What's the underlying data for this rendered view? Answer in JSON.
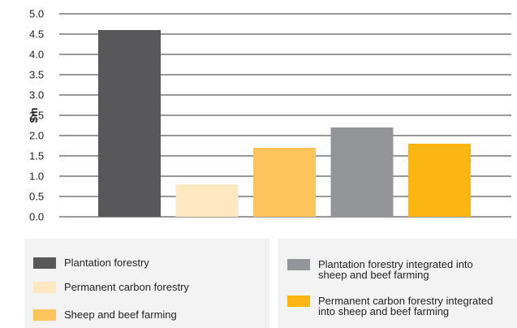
{
  "chart_data": {
    "type": "bar",
    "categories": [
      "Plantation forestry",
      "Permanent carbon forestry",
      "Sheep and beef farming",
      "Plantation forestry integrated into sheep and beef farming",
      "Permanent carbon forestry integrated into sheep and beef farming"
    ],
    "values": [
      4.6,
      0.8,
      1.7,
      2.2,
      1.8
    ],
    "colors": [
      "#58585a",
      "#fde8c2",
      "#fdc35c",
      "#939598",
      "#fbb614"
    ],
    "ylabel": "$m",
    "ylim": [
      0,
      5.0
    ],
    "yticks": [
      "0.0",
      "0.5",
      "1.0",
      "1.5",
      "2.0",
      "2.5",
      "3.0",
      "3.5",
      "4.0",
      "4.5",
      "5.0"
    ],
    "grid": true,
    "legend_placement": "bottom",
    "legend": {
      "left": [
        {
          "label": "Plantation forestry",
          "color": "#58585a"
        },
        {
          "label": "Permanent carbon forestry",
          "color": "#fde8c2"
        },
        {
          "label": "Sheep and beef farming",
          "color": "#fdc35c"
        }
      ],
      "right": [
        {
          "label": [
            "Plantation forestry integrated into",
            "sheep and beef farming"
          ],
          "color": "#939598"
        },
        {
          "label": [
            "Permanent carbon forestry integrated",
            "into sheep and beef farming"
          ],
          "color": "#fbb614"
        }
      ]
    }
  }
}
